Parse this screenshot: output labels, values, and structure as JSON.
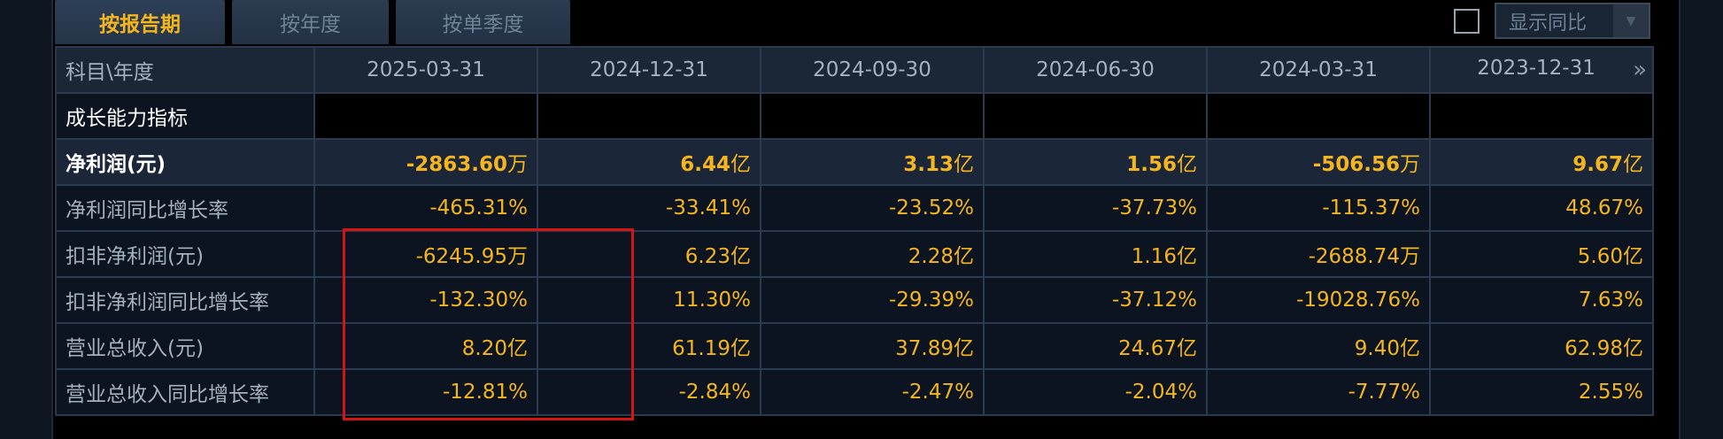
{
  "tabs": [
    {
      "label": "按报告期",
      "active": true
    },
    {
      "label": "按年度",
      "active": false
    },
    {
      "label": "按单季度",
      "active": false
    }
  ],
  "toggle": {
    "label": "显示同比"
  },
  "table": {
    "corner_label": "科目\\年度",
    "dates": [
      "2025-03-31",
      "2024-12-31",
      "2024-09-30",
      "2024-06-30",
      "2024-03-31",
      "2023-12-31"
    ],
    "more_icon": "»",
    "section_title": "成长能力指标",
    "rows": [
      {
        "label": "净利润(元)",
        "values": [
          {
            "num": "-2863.60",
            "unit": "万"
          },
          {
            "num": "6.44",
            "unit": "亿"
          },
          {
            "num": "3.13",
            "unit": "亿"
          },
          {
            "num": "1.56",
            "unit": "亿"
          },
          {
            "num": "-506.56",
            "unit": "万"
          },
          {
            "num": "9.67",
            "unit": "亿"
          }
        ]
      },
      {
        "label": "净利润同比增长率",
        "values": [
          {
            "num": "-465.31%",
            "unit": ""
          },
          {
            "num": "-33.41%",
            "unit": ""
          },
          {
            "num": "-23.52%",
            "unit": ""
          },
          {
            "num": "-37.73%",
            "unit": ""
          },
          {
            "num": "-115.37%",
            "unit": ""
          },
          {
            "num": "48.67%",
            "unit": ""
          }
        ]
      },
      {
        "label": "扣非净利润(元)",
        "values": [
          {
            "num": "-6245.95",
            "unit": "万"
          },
          {
            "num": "6.23",
            "unit": "亿"
          },
          {
            "num": "2.28",
            "unit": "亿"
          },
          {
            "num": "1.16",
            "unit": "亿"
          },
          {
            "num": "-2688.74",
            "unit": "万"
          },
          {
            "num": "5.60",
            "unit": "亿"
          }
        ]
      },
      {
        "label": "扣非净利润同比增长率",
        "values": [
          {
            "num": "-132.30%",
            "unit": ""
          },
          {
            "num": "11.30%",
            "unit": ""
          },
          {
            "num": "-29.39%",
            "unit": ""
          },
          {
            "num": "-37.12%",
            "unit": ""
          },
          {
            "num": "-19028.76%",
            "unit": ""
          },
          {
            "num": "7.63%",
            "unit": ""
          }
        ]
      },
      {
        "label": "营业总收入(元)",
        "values": [
          {
            "num": "8.20",
            "unit": "亿"
          },
          {
            "num": "61.19",
            "unit": "亿"
          },
          {
            "num": "37.89",
            "unit": "亿"
          },
          {
            "num": "24.67",
            "unit": "亿"
          },
          {
            "num": "9.40",
            "unit": "亿"
          },
          {
            "num": "62.98",
            "unit": "亿"
          }
        ]
      },
      {
        "label": "营业总收入同比增长率",
        "values": [
          {
            "num": "-12.81%",
            "unit": ""
          },
          {
            "num": "-2.84%",
            "unit": ""
          },
          {
            "num": "-2.47%",
            "unit": ""
          },
          {
            "num": "-2.04%",
            "unit": ""
          },
          {
            "num": "-7.77%",
            "unit": ""
          },
          {
            "num": "2.55%",
            "unit": ""
          }
        ]
      }
    ]
  },
  "colors": {
    "accent": "#f5b51d",
    "highlight_border": "#d51414",
    "header_bg": "#1b2737"
  }
}
